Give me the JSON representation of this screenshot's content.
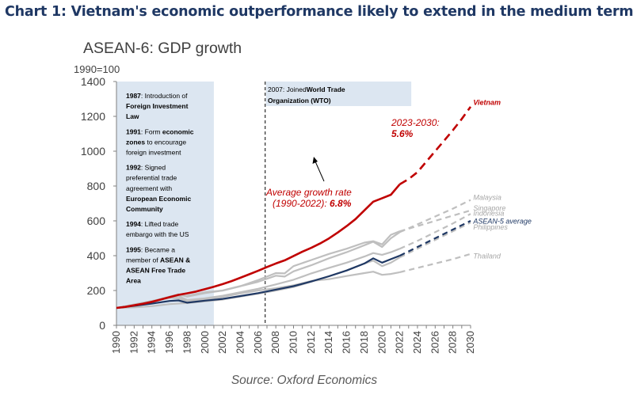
{
  "header": {
    "title": "Chart 1: Vietnam's economic outperformance likely to extend in the medium term"
  },
  "chart_data": {
    "type": "line",
    "title": "ASEAN-6: GDP growth",
    "ylabel": "1990=100",
    "xlabel": "",
    "source": "Source: Oxford Economics",
    "xlim": [
      1990,
      2030
    ],
    "ylim": [
      0,
      1400
    ],
    "yticks": [
      0,
      200,
      400,
      600,
      800,
      1000,
      1200,
      1400
    ],
    "xticks": [
      1990,
      1992,
      1994,
      1996,
      1998,
      2000,
      2002,
      2004,
      2006,
      2008,
      2010,
      2012,
      2014,
      2016,
      2018,
      2020,
      2022,
      2024,
      2026,
      2028,
      2030
    ],
    "grid": false,
    "shaded_period": [
      1990,
      2001
    ],
    "vline_x": 2006.8,
    "colors": {
      "vietnam": "#c00000",
      "asean5": "#1f3864",
      "others": "#bfbfbf",
      "shade": "#dce6f1"
    },
    "series": [
      {
        "name": "Vietnam",
        "x": [
          1990,
          1991,
          1992,
          1993,
          1994,
          1995,
          1996,
          1997,
          1998,
          1999,
          2000,
          2001,
          2002,
          2003,
          2004,
          2005,
          2006,
          2007,
          2008,
          2009,
          2010,
          2011,
          2012,
          2013,
          2014,
          2015,
          2016,
          2017,
          2018,
          2019,
          2020,
          2021,
          2022
        ],
        "values": [
          100,
          106,
          115,
          124,
          135,
          148,
          162,
          175,
          184,
          194,
          208,
          222,
          237,
          254,
          273,
          293,
          313,
          335,
          355,
          373,
          398,
          423,
          445,
          470,
          499,
          533,
          570,
          610,
          660,
          710,
          730,
          750,
          810
        ],
        "forecast_x": [
          2022,
          2023,
          2024,
          2025,
          2026,
          2027,
          2028,
          2029,
          2030
        ],
        "forecast": [
          810,
          840,
          880,
          940,
          1000,
          1060,
          1120,
          1185,
          1255
        ]
      },
      {
        "name": "Malaysia",
        "x": [
          1990,
          1992,
          1994,
          1996,
          1997,
          1998,
          2000,
          2002,
          2004,
          2006,
          2008,
          2009,
          2010,
          2012,
          2014,
          2016,
          2018,
          2019,
          2020,
          2021,
          2022
        ],
        "values": [
          100,
          118,
          138,
          165,
          178,
          165,
          185,
          200,
          225,
          250,
          285,
          280,
          310,
          345,
          385,
          420,
          460,
          480,
          450,
          500,
          535
        ],
        "forecast_x": [
          2022,
          2024,
          2026,
          2028,
          2030
        ],
        "forecast": [
          535,
          580,
          625,
          670,
          720
        ]
      },
      {
        "name": "Singapore",
        "x": [
          1990,
          1992,
          1994,
          1996,
          1997,
          1998,
          2000,
          2002,
          2004,
          2006,
          2008,
          2009,
          2010,
          2012,
          2014,
          2016,
          2018,
          2019,
          2020,
          2021,
          2022
        ],
        "values": [
          100,
          115,
          135,
          160,
          172,
          170,
          190,
          200,
          225,
          260,
          300,
          298,
          340,
          375,
          410,
          440,
          475,
          483,
          465,
          520,
          540
        ],
        "forecast_x": [
          2022,
          2024,
          2026,
          2028,
          2030
        ],
        "forecast": [
          540,
          570,
          600,
          630,
          660
        ]
      },
      {
        "name": "Indonesia",
        "x": [
          1990,
          1992,
          1994,
          1996,
          1997,
          1998,
          2000,
          2002,
          2004,
          2006,
          2008,
          2010,
          2012,
          2014,
          2016,
          2018,
          2019,
          2020,
          2021,
          2022
        ],
        "values": [
          100,
          118,
          138,
          160,
          168,
          145,
          155,
          170,
          190,
          210,
          235,
          262,
          298,
          330,
          360,
          395,
          415,
          405,
          420,
          440
        ],
        "forecast_x": [
          2022,
          2024,
          2026,
          2028,
          2030
        ],
        "forecast": [
          440,
          485,
          535,
          585,
          640
        ]
      },
      {
        "name": "ASEAN-5 average",
        "x": [
          1990,
          1992,
          1994,
          1996,
          1997,
          1998,
          2000,
          2002,
          2004,
          2006,
          2008,
          2010,
          2012,
          2014,
          2016,
          2018,
          2019,
          2020,
          2021,
          2022
        ],
        "values": [
          100,
          112,
          125,
          140,
          143,
          130,
          142,
          152,
          168,
          185,
          205,
          225,
          252,
          282,
          315,
          355,
          385,
          360,
          380,
          400
        ],
        "forecast_x": [
          2022,
          2024,
          2026,
          2028,
          2030
        ],
        "forecast": [
          400,
          450,
          500,
          550,
          600
        ]
      },
      {
        "name": "Philippines",
        "x": [
          1990,
          1992,
          1994,
          1996,
          1998,
          2000,
          2002,
          2004,
          2006,
          2008,
          2010,
          2012,
          2014,
          2016,
          2018,
          2019,
          2020,
          2021,
          2022
        ],
        "values": [
          100,
          103,
          110,
          122,
          128,
          138,
          148,
          165,
          182,
          200,
          220,
          250,
          282,
          315,
          355,
          372,
          340,
          360,
          390
        ],
        "forecast_x": [
          2022,
          2024,
          2026,
          2028,
          2030
        ],
        "forecast": [
          390,
          440,
          490,
          540,
          590
        ]
      },
      {
        "name": "Thailand",
        "x": [
          1990,
          1992,
          1994,
          1996,
          1997,
          1998,
          2000,
          2002,
          2004,
          2006,
          2008,
          2010,
          2012,
          2014,
          2016,
          2018,
          2019,
          2020,
          2021,
          2022
        ],
        "values": [
          100,
          120,
          140,
          158,
          155,
          140,
          150,
          163,
          183,
          200,
          213,
          230,
          255,
          265,
          283,
          300,
          308,
          290,
          295,
          305
        ],
        "forecast_x": [
          2022,
          2024,
          2026,
          2028,
          2030
        ],
        "forecast": [
          305,
          330,
          355,
          380,
          410
        ]
      }
    ],
    "line_labels": [
      {
        "text": "Vietnam",
        "x": 2030.3,
        "y": 1265,
        "color": "#c00000",
        "bold": true
      },
      {
        "text": "Malaysia",
        "x": 2030.3,
        "y": 720,
        "color": "#a6a6a6",
        "bold": false
      },
      {
        "text": "Singapore",
        "x": 2030.3,
        "y": 660,
        "color": "#a6a6a6",
        "bold": false
      },
      {
        "text": "Indonesia",
        "x": 2030.3,
        "y": 630,
        "color": "#a6a6a6",
        "bold": false
      },
      {
        "text": "ASEAN-5 average",
        "x": 2030.3,
        "y": 585,
        "color": "#1f3864",
        "bold": false
      },
      {
        "text": "Philippines",
        "x": 2030.3,
        "y": 550,
        "color": "#a6a6a6",
        "bold": false
      },
      {
        "text": "Thailand",
        "x": 2030.3,
        "y": 385,
        "color": "#a6a6a6",
        "bold": false
      }
    ],
    "annotations": {
      "forecast_label_line1": "2023-2030:",
      "forecast_label_value": "5.6%",
      "avg_line1": "Average growth rate",
      "avg_line2": "(1990-2022): ",
      "avg_value": "6.8%",
      "wto_text_plain": "2007: Joined",
      "wto_text_bold1": "World Trade",
      "wto_text_bold2": "Organization (WTO)"
    },
    "milestones": [
      {
        "runs": [
          [
            {
              "t": "1987",
              "b": true
            },
            {
              "t": ": Introduction of",
              "b": false
            }
          ],
          [
            {
              "t": "Foreign Investment",
              "b": true
            }
          ],
          [
            {
              "t": "Law",
              "b": true
            }
          ]
        ]
      },
      {
        "runs": [
          [
            {
              "t": "1991",
              "b": true
            },
            {
              "t": ": Form ",
              "b": false
            },
            {
              "t": "economic",
              "b": true
            }
          ],
          [
            {
              "t": "zones",
              "b": true
            },
            {
              "t": " to encourage",
              "b": false
            }
          ],
          [
            {
              "t": "foreign investment",
              "b": false
            }
          ]
        ]
      },
      {
        "runs": [
          [
            {
              "t": "1992",
              "b": true
            },
            {
              "t": ": Signed",
              "b": false
            }
          ],
          [
            {
              "t": "preferential trade",
              "b": false
            }
          ],
          [
            {
              "t": "agreement with",
              "b": false
            }
          ],
          [
            {
              "t": "European Economic",
              "b": true
            }
          ],
          [
            {
              "t": "Community",
              "b": true
            }
          ]
        ]
      },
      {
        "runs": [
          [
            {
              "t": "1994",
              "b": true
            },
            {
              "t": ": Lifted trade",
              "b": false
            }
          ],
          [
            {
              "t": "embargo with the US",
              "b": false
            }
          ]
        ]
      },
      {
        "runs": [
          [
            {
              "t": "1995",
              "b": true
            },
            {
              "t": ": Became a",
              "b": false
            }
          ],
          [
            {
              "t": "member of ",
              "b": false
            },
            {
              "t": "ASEAN &",
              "b": true
            }
          ],
          [
            {
              "t": "ASEAN Free Trade",
              "b": true
            }
          ],
          [
            {
              "t": "Area",
              "b": true
            }
          ]
        ]
      }
    ]
  }
}
